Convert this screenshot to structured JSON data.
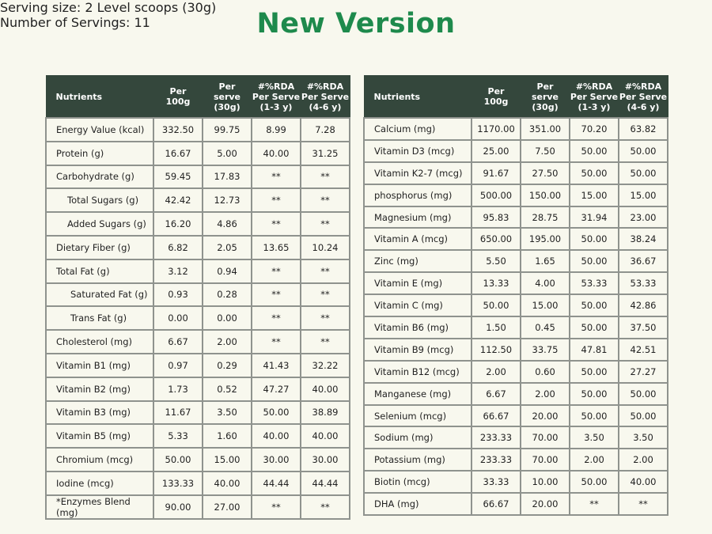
{
  "title": "New Version",
  "tables": [
    {
      "heading": "Serving size: 2 Level scoops (30g)",
      "headers": [
        [
          "Nutrients"
        ],
        [
          "Per",
          "100g"
        ],
        [
          "Per",
          "serve",
          "(30g)"
        ],
        [
          "#%RDA",
          "Per Serve",
          "(1-3 y)"
        ],
        [
          "#%RDA",
          "Per Serve",
          "(4-6 y)"
        ]
      ],
      "rows": [
        [
          "Energy Value (kcal)",
          "332.50",
          "99.75",
          "8.99",
          "7.28"
        ],
        [
          "Protein (g)",
          "16.67",
          "5.00",
          "40.00",
          "31.25"
        ],
        [
          "Carbohydrate (g)",
          "59.45",
          "17.83",
          "**",
          "**"
        ],
        [
          "Total Sugars (g)",
          "42.42",
          "12.73",
          "**",
          "**"
        ],
        [
          "Added Sugars (g)",
          "16.20",
          "4.86",
          "**",
          "**"
        ],
        [
          "Dietary Fiber (g)",
          "6.82",
          "2.05",
          "13.65",
          "10.24"
        ],
        [
          "Total Fat (g)",
          "3.12",
          "0.94",
          "**",
          "**"
        ],
        [
          "Saturated Fat (g)",
          "0.93",
          "0.28",
          "**",
          "**"
        ],
        [
          "Trans Fat (g)",
          "0.00",
          "0.00",
          "**",
          "**"
        ],
        [
          "Cholesterol (mg)",
          "6.67",
          "2.00",
          "**",
          "**"
        ],
        [
          "Vitamin B1 (mg)",
          "0.97",
          "0.29",
          "41.43",
          "32.22"
        ],
        [
          "Vitamin B2 (mg)",
          "1.73",
          "0.52",
          "47.27",
          "40.00"
        ],
        [
          "Vitamin B3 (mg)",
          "11.67",
          "3.50",
          "50.00",
          "38.89"
        ],
        [
          "Vitamin B5 (mg)",
          "5.33",
          "1.60",
          "40.00",
          "40.00"
        ],
        [
          "Chromium (mcg)",
          "50.00",
          "15.00",
          "30.00",
          "30.00"
        ],
        [
          "Iodine (mcg)",
          "133.33",
          "40.00",
          "44.44",
          "44.44"
        ],
        [
          "*Enzymes Blend (mg)",
          "90.00",
          "27.00",
          "**",
          "**"
        ]
      ]
    },
    {
      "heading": "Number of Servings: 11",
      "headers": [
        [
          "Nutrients"
        ],
        [
          "Per",
          "100g"
        ],
        [
          "Per",
          "serve",
          "(30g)"
        ],
        [
          "#%RDA",
          "Per Serve",
          "(1-3 y)"
        ],
        [
          "#%RDA",
          "Per Serve",
          "(4-6 y)"
        ]
      ],
      "rows": [
        [
          "Calcium (mg)",
          "1170.00",
          "351.00",
          "70.20",
          "63.82"
        ],
        [
          "Vitamin D3 (mcg)",
          "25.00",
          "7.50",
          "50.00",
          "50.00"
        ],
        [
          "Vitamin K2-7 (mcg)",
          "91.67",
          "27.50",
          "50.00",
          "50.00"
        ],
        [
          "phosphorus (mg)",
          "500.00",
          "150.00",
          "15.00",
          "15.00"
        ],
        [
          "Magnesium (mg)",
          "95.83",
          "28.75",
          "31.94",
          "23.00"
        ],
        [
          "Vitamin A (mcg)",
          "650.00",
          "195.00",
          "50.00",
          "38.24"
        ],
        [
          "Zinc (mg)",
          "5.50",
          "1.65",
          "50.00",
          "36.67"
        ],
        [
          "Vitamin E (mg)",
          "13.33",
          "4.00",
          "53.33",
          "53.33"
        ],
        [
          "Vitamin C (mg)",
          "50.00",
          "15.00",
          "50.00",
          "42.86"
        ],
        [
          "Vitamin B6 (mg)",
          "1.50",
          "0.45",
          "50.00",
          "37.50"
        ],
        [
          "Vitamin B9 (mcg)",
          "112.50",
          "33.75",
          "47.81",
          "42.51"
        ],
        [
          "Vitamin B12 (mcg)",
          "2.00",
          "0.60",
          "50.00",
          "27.27"
        ],
        [
          "Manganese (mg)",
          "6.67",
          "2.00",
          "50.00",
          "50.00"
        ],
        [
          "Selenium (mcg)",
          "66.67",
          "20.00",
          "50.00",
          "50.00"
        ],
        [
          "Sodium (mg)",
          "233.33",
          "70.00",
          "3.50",
          "3.50"
        ],
        [
          "Potassium (mg)",
          "233.33",
          "70.00",
          "2.00",
          "2.00"
        ],
        [
          "Biotin (mcg)",
          "33.33",
          "10.00",
          "50.00",
          "40.00"
        ],
        [
          "DHA (mg)",
          "66.67",
          "20.00",
          "**",
          "**"
        ]
      ]
    }
  ]
}
